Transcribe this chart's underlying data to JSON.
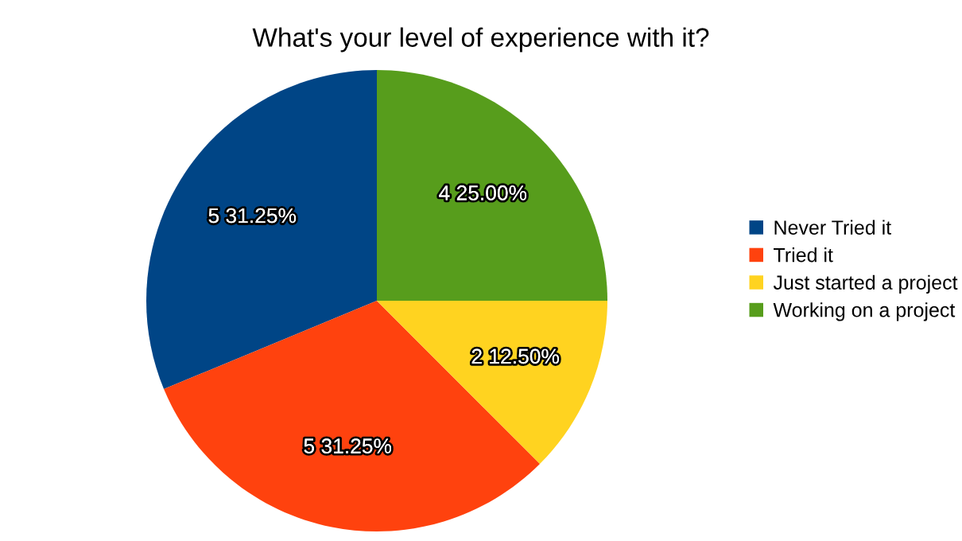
{
  "chart_data": {
    "type": "pie",
    "title": "What's your level of experience with it?",
    "categories": [
      "Never Tried it",
      "Tried it",
      "Just started a project",
      "Working on a project"
    ],
    "values": [
      5,
      5,
      2,
      4
    ],
    "colors": [
      "#004586",
      "#ff420e",
      "#ffd320",
      "#579d1c"
    ],
    "value_labels": [
      "5 31.25%",
      "5 31.25%",
      "2 12.50%",
      "4 25.00%"
    ],
    "legend": "right"
  }
}
